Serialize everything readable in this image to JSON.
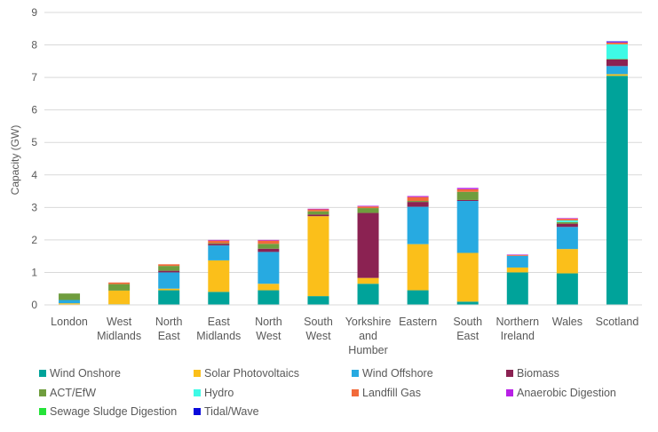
{
  "chart_data": {
    "type": "bar",
    "stacked": true,
    "title": "",
    "xlabel": "",
    "ylabel": "Capacity (GW)",
    "ylim": [
      0,
      9
    ],
    "yticks": [
      0,
      1,
      2,
      3,
      4,
      5,
      6,
      7,
      8,
      9
    ],
    "grid": true,
    "legend_position": "bottom",
    "categories": [
      [
        "London"
      ],
      [
        "West",
        "Midlands"
      ],
      [
        "North",
        "East"
      ],
      [
        "East",
        "Midlands"
      ],
      [
        "North",
        "West"
      ],
      [
        "South",
        "West"
      ],
      [
        "Yorkshire",
        "and",
        "Humber"
      ],
      [
        "Eastern"
      ],
      [
        "South",
        "East"
      ],
      [
        "Northern",
        "Ireland"
      ],
      [
        "Wales"
      ],
      [
        "Scotland"
      ]
    ],
    "series": [
      {
        "name": "Wind Onshore",
        "color": "#00A39A",
        "values": [
          0.0,
          0.02,
          0.45,
          0.4,
          0.45,
          0.27,
          0.65,
          0.45,
          0.1,
          1.0,
          0.97,
          7.05
        ]
      },
      {
        "name": "Solar Photovoltaics",
        "color": "#FBBF1A",
        "values": [
          0.05,
          0.42,
          0.05,
          0.97,
          0.2,
          2.46,
          0.18,
          1.42,
          1.5,
          0.15,
          0.75,
          0.05
        ]
      },
      {
        "name": "Wind Offshore",
        "color": "#27AAE1",
        "values": [
          0.1,
          0.0,
          0.5,
          0.46,
          0.98,
          0.0,
          0.0,
          1.15,
          1.6,
          0.36,
          0.68,
          0.25
        ]
      },
      {
        "name": "Biomass",
        "color": "#8B2252",
        "values": [
          0.0,
          0.0,
          0.05,
          0.05,
          0.1,
          0.05,
          2.0,
          0.15,
          0.03,
          0.0,
          0.1,
          0.2
        ]
      },
      {
        "name": "ACT/EfW",
        "color": "#6F9D3E",
        "values": [
          0.2,
          0.2,
          0.15,
          0.02,
          0.15,
          0.1,
          0.15,
          0.03,
          0.25,
          0.0,
          0.05,
          0.02
        ]
      },
      {
        "name": "Hydro",
        "color": "#3EFAE6",
        "values": [
          0.0,
          0.0,
          0.0,
          0.0,
          0.0,
          0.0,
          0.0,
          0.0,
          0.0,
          0.0,
          0.05,
          0.45
        ]
      },
      {
        "name": "Landfill Gas",
        "color": "#F26A3A",
        "values": [
          0.0,
          0.05,
          0.05,
          0.08,
          0.1,
          0.06,
          0.05,
          0.12,
          0.08,
          0.03,
          0.05,
          0.05
        ]
      },
      {
        "name": "Anaerobic Digestion",
        "color": "#B820E6",
        "values": [
          0.0,
          0.0,
          0.0,
          0.02,
          0.02,
          0.02,
          0.02,
          0.03,
          0.04,
          0.01,
          0.02,
          0.02
        ]
      },
      {
        "name": "Sewage Sludge Digestion",
        "color": "#25E339",
        "values": [
          0.0,
          0.0,
          0.0,
          0.0,
          0.0,
          0.0,
          0.0,
          0.0,
          0.0,
          0.0,
          0.0,
          0.0
        ]
      },
      {
        "name": "Tidal/Wave",
        "color": "#0A0ADB",
        "values": [
          0.0,
          0.0,
          0.0,
          0.0,
          0.0,
          0.0,
          0.0,
          0.0,
          0.0,
          0.0,
          0.0,
          0.02
        ]
      }
    ]
  },
  "colors": {
    "gridline": "#D9D9D9",
    "text": "#595959"
  }
}
